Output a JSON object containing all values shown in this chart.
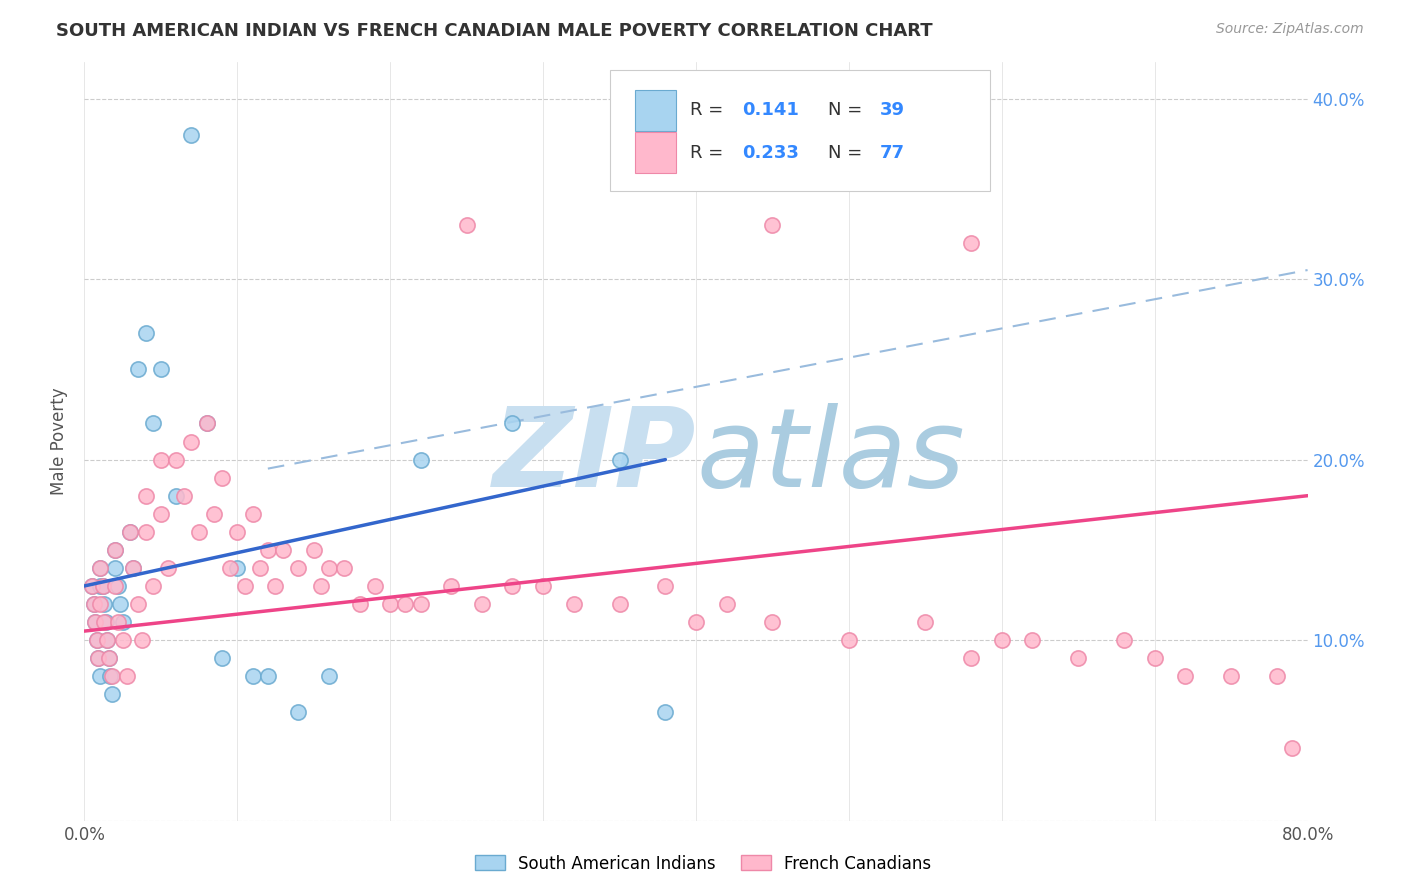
{
  "title": "SOUTH AMERICAN INDIAN VS FRENCH CANADIAN MALE POVERTY CORRELATION CHART",
  "source": "Source: ZipAtlas.com",
  "ylabel": "Male Poverty",
  "xlim": [
    0.0,
    0.8
  ],
  "ylim": [
    -0.02,
    0.44
  ],
  "plot_ylim": [
    0.0,
    0.42
  ],
  "legend_R1": "0.141",
  "legend_N1": "39",
  "legend_R2": "0.233",
  "legend_N2": "77",
  "blue_fill": "#A8D4F0",
  "blue_edge": "#6AAAD0",
  "pink_fill": "#FFB8CC",
  "pink_edge": "#EE88A8",
  "blue_line_color": "#3366CC",
  "pink_line_color": "#EE4488",
  "dashed_line_color": "#99BBDD",
  "watermark_color": "#C8DFF0",
  "sa_indian_x": [
    0.005,
    0.006,
    0.007,
    0.008,
    0.009,
    0.01,
    0.01,
    0.01,
    0.012,
    0.013,
    0.014,
    0.015,
    0.016,
    0.017,
    0.018,
    0.02,
    0.02,
    0.022,
    0.023,
    0.025,
    0.03,
    0.032,
    0.035,
    0.04,
    0.045,
    0.05,
    0.06,
    0.07,
    0.08,
    0.09,
    0.1,
    0.11,
    0.12,
    0.14,
    0.16,
    0.22,
    0.28,
    0.35,
    0.38
  ],
  "sa_indian_y": [
    0.13,
    0.12,
    0.11,
    0.1,
    0.09,
    0.14,
    0.13,
    0.08,
    0.13,
    0.12,
    0.11,
    0.1,
    0.09,
    0.08,
    0.07,
    0.15,
    0.14,
    0.13,
    0.12,
    0.11,
    0.16,
    0.14,
    0.25,
    0.27,
    0.22,
    0.25,
    0.18,
    0.38,
    0.22,
    0.09,
    0.14,
    0.08,
    0.08,
    0.06,
    0.08,
    0.2,
    0.22,
    0.2,
    0.06
  ],
  "fr_canadian_x": [
    0.005,
    0.006,
    0.007,
    0.008,
    0.009,
    0.01,
    0.01,
    0.012,
    0.013,
    0.015,
    0.016,
    0.018,
    0.02,
    0.02,
    0.022,
    0.025,
    0.028,
    0.03,
    0.032,
    0.035,
    0.038,
    0.04,
    0.04,
    0.045,
    0.05,
    0.05,
    0.055,
    0.06,
    0.065,
    0.07,
    0.075,
    0.08,
    0.085,
    0.09,
    0.095,
    0.1,
    0.105,
    0.11,
    0.115,
    0.12,
    0.125,
    0.13,
    0.14,
    0.15,
    0.155,
    0.16,
    0.17,
    0.18,
    0.19,
    0.2,
    0.21,
    0.22,
    0.24,
    0.26,
    0.28,
    0.3,
    0.32,
    0.35,
    0.38,
    0.4,
    0.42,
    0.45,
    0.5,
    0.55,
    0.58,
    0.6,
    0.62,
    0.65,
    0.68,
    0.7,
    0.72,
    0.75,
    0.78,
    0.79,
    0.58,
    0.45,
    0.25
  ],
  "fr_canadian_y": [
    0.13,
    0.12,
    0.11,
    0.1,
    0.09,
    0.14,
    0.12,
    0.13,
    0.11,
    0.1,
    0.09,
    0.08,
    0.15,
    0.13,
    0.11,
    0.1,
    0.08,
    0.16,
    0.14,
    0.12,
    0.1,
    0.18,
    0.16,
    0.13,
    0.2,
    0.17,
    0.14,
    0.2,
    0.18,
    0.21,
    0.16,
    0.22,
    0.17,
    0.19,
    0.14,
    0.16,
    0.13,
    0.17,
    0.14,
    0.15,
    0.13,
    0.15,
    0.14,
    0.15,
    0.13,
    0.14,
    0.14,
    0.12,
    0.13,
    0.12,
    0.12,
    0.12,
    0.13,
    0.12,
    0.13,
    0.13,
    0.12,
    0.12,
    0.13,
    0.11,
    0.12,
    0.11,
    0.1,
    0.11,
    0.09,
    0.1,
    0.1,
    0.09,
    0.1,
    0.09,
    0.08,
    0.08,
    0.08,
    0.04,
    0.32,
    0.33,
    0.33
  ],
  "blue_line_x": [
    0.0,
    0.38
  ],
  "blue_line_y": [
    0.13,
    0.2
  ],
  "pink_line_x": [
    0.0,
    0.8
  ],
  "pink_line_y": [
    0.105,
    0.18
  ],
  "dash_line_x": [
    0.12,
    0.8
  ],
  "dash_line_y": [
    0.195,
    0.305
  ]
}
